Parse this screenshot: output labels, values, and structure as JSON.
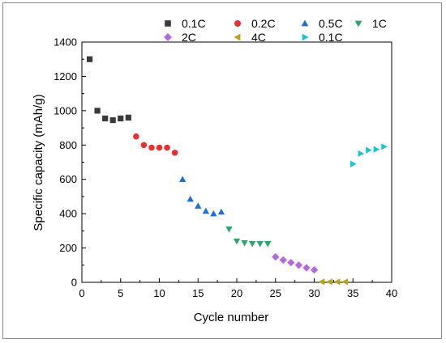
{
  "chart_data": {
    "type": "scatter",
    "xlabel": "Cycle number",
    "ylabel": "Specific capacity (mAh/g)",
    "xlim": [
      0,
      40
    ],
    "ylim": [
      0,
      1400
    ],
    "x_ticks": [
      "0",
      "5",
      "10",
      "15",
      "20",
      "25",
      "30",
      "35",
      "40"
    ],
    "y_ticks": [
      "0",
      "200",
      "400",
      "600",
      "800",
      "1000",
      "1200",
      "1400"
    ],
    "grid": false,
    "legend_position": "top-right",
    "series": [
      {
        "name": "0.1C",
        "marker": "square",
        "color": "#3a3a3a",
        "x": [
          1,
          2,
          3,
          4,
          5,
          6
        ],
        "y": [
          1300,
          1000,
          955,
          945,
          955,
          960
        ]
      },
      {
        "name": "0.2C",
        "marker": "circle",
        "color": "#e8312f",
        "x": [
          7,
          8,
          9,
          10,
          11,
          12
        ],
        "y": [
          850,
          800,
          785,
          785,
          785,
          755
        ]
      },
      {
        "name": "0.5C",
        "marker": "triangle-up",
        "color": "#1e6fd8",
        "x": [
          13,
          14,
          15,
          16,
          17,
          18
        ],
        "y": [
          600,
          485,
          445,
          415,
          400,
          410
        ]
      },
      {
        "name": "1C",
        "marker": "triangle-down",
        "color": "#2aa86a",
        "x": [
          19,
          20,
          21,
          22,
          23,
          24
        ],
        "y": [
          310,
          240,
          230,
          225,
          225,
          225
        ]
      },
      {
        "name": "2C",
        "marker": "diamond",
        "color": "#b569dc",
        "x": [
          25,
          26,
          27,
          28,
          29,
          30
        ],
        "y": [
          148,
          130,
          115,
          100,
          85,
          72
        ]
      },
      {
        "name": "4C",
        "marker": "triangle-left",
        "color": "#b8a21a",
        "x": [
          31,
          32,
          33,
          34
        ],
        "y": [
          3,
          3,
          3,
          3
        ]
      },
      {
        "name": "0.1C",
        "marker": "triangle-right",
        "color": "#19c4d4",
        "x": [
          35,
          36,
          37,
          38,
          39
        ],
        "y": [
          690,
          750,
          770,
          775,
          790
        ]
      }
    ]
  }
}
